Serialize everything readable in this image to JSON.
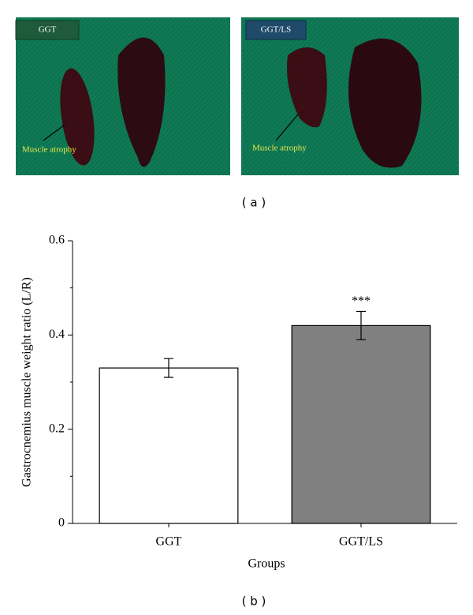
{
  "panel_a": {
    "left_label": "GGT",
    "right_label": "GGT/LS",
    "left_note": "Muscle atrophy",
    "right_note": "Muscle atrophy",
    "caption": "( a )"
  },
  "chart_data": {
    "type": "bar",
    "categories": [
      "GGT",
      "GGT/LS"
    ],
    "values": [
      0.33,
      0.42
    ],
    "errors": [
      0.02,
      0.03
    ],
    "colors": [
      "#ffffff",
      "#808080"
    ],
    "annotation": "***",
    "ylabel": "Gastrocnemius muscle weight ratio (L/R)",
    "xlabel": "Groups",
    "ylim": [
      0,
      0.6
    ],
    "yticks": [
      0,
      0.2,
      0.4,
      0.6
    ],
    "yticks_minor": [
      0.1,
      0.3,
      0.5
    ],
    "caption": "( b )"
  }
}
